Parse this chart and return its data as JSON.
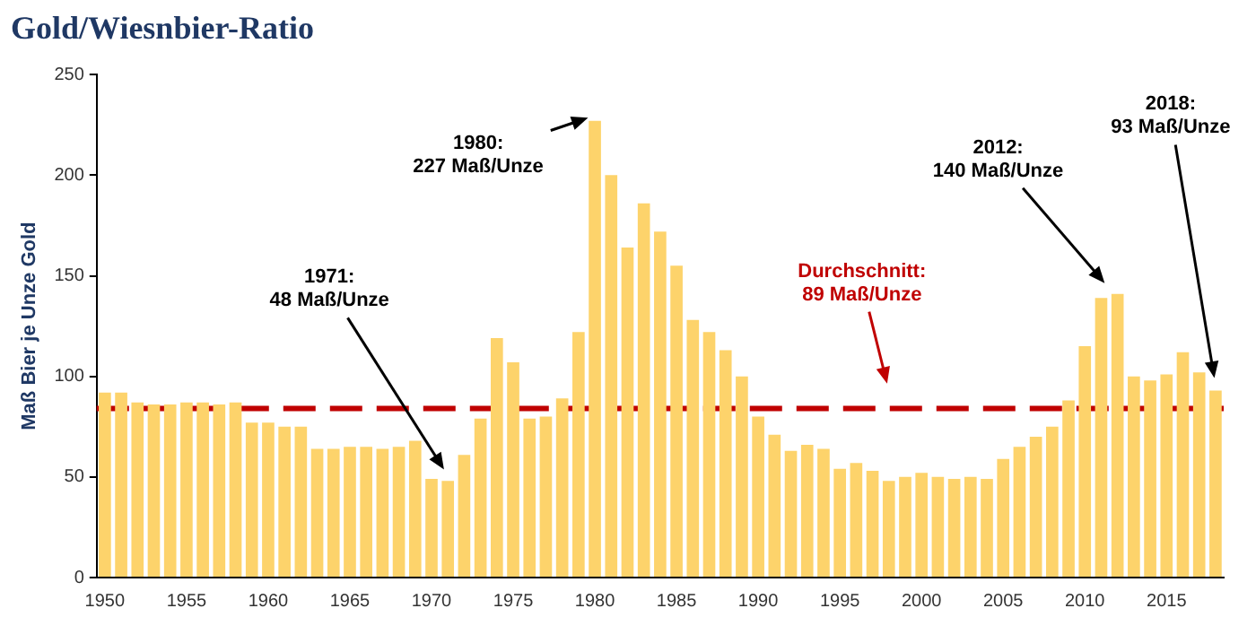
{
  "chart_data": {
    "type": "bar",
    "title": "Gold/Wiesnbier-Ratio",
    "ylabel": "Maß Bier je Unze Gold",
    "categories": [
      "1950",
      null,
      null,
      null,
      null,
      "1955",
      null,
      null,
      null,
      null,
      "1960",
      null,
      null,
      null,
      null,
      "1965",
      null,
      null,
      null,
      null,
      "1970",
      null,
      null,
      null,
      null,
      "1975",
      null,
      null,
      null,
      null,
      "1980",
      null,
      null,
      null,
      null,
      "1985",
      null,
      null,
      null,
      null,
      "1990",
      null,
      null,
      null,
      null,
      "1995",
      null,
      null,
      null,
      null,
      "2000",
      null,
      null,
      null,
      null,
      "2005",
      null,
      null,
      null,
      null,
      "2010",
      null,
      null,
      null,
      null,
      "2015",
      null,
      null,
      null
    ],
    "values": [
      92,
      92,
      87,
      86,
      86,
      87,
      87,
      86,
      87,
      77,
      77,
      75,
      75,
      64,
      64,
      65,
      65,
      64,
      65,
      68,
      49,
      48,
      61,
      79,
      119,
      107,
      79,
      80,
      89,
      122,
      227,
      200,
      164,
      186,
      172,
      155,
      128,
      122,
      113,
      100,
      80,
      71,
      63,
      66,
      64,
      54,
      57,
      53,
      48,
      50,
      52,
      50,
      49,
      50,
      49,
      59,
      65,
      70,
      75,
      88,
      115,
      139,
      141,
      100,
      98,
      101,
      112,
      102,
      93
    ],
    "color": "#fdd36b",
    "ylim": [
      0,
      250
    ],
    "yticks": [
      0,
      50,
      100,
      150,
      200,
      250
    ],
    "grid": false,
    "legend": false,
    "ref_lines": [
      {
        "axis": "y",
        "value": 84,
        "color": "#c00000",
        "line_style": "dashed"
      }
    ],
    "annotations": [
      "Durchschnitt:\n89 Maß/Unze",
      "1971:\n48 Maß/Unze",
      "1980:\n227 Maß/Unze",
      "2012:\n140 Maß/Unze",
      "2018:\n93 Maß/Unze"
    ]
  }
}
